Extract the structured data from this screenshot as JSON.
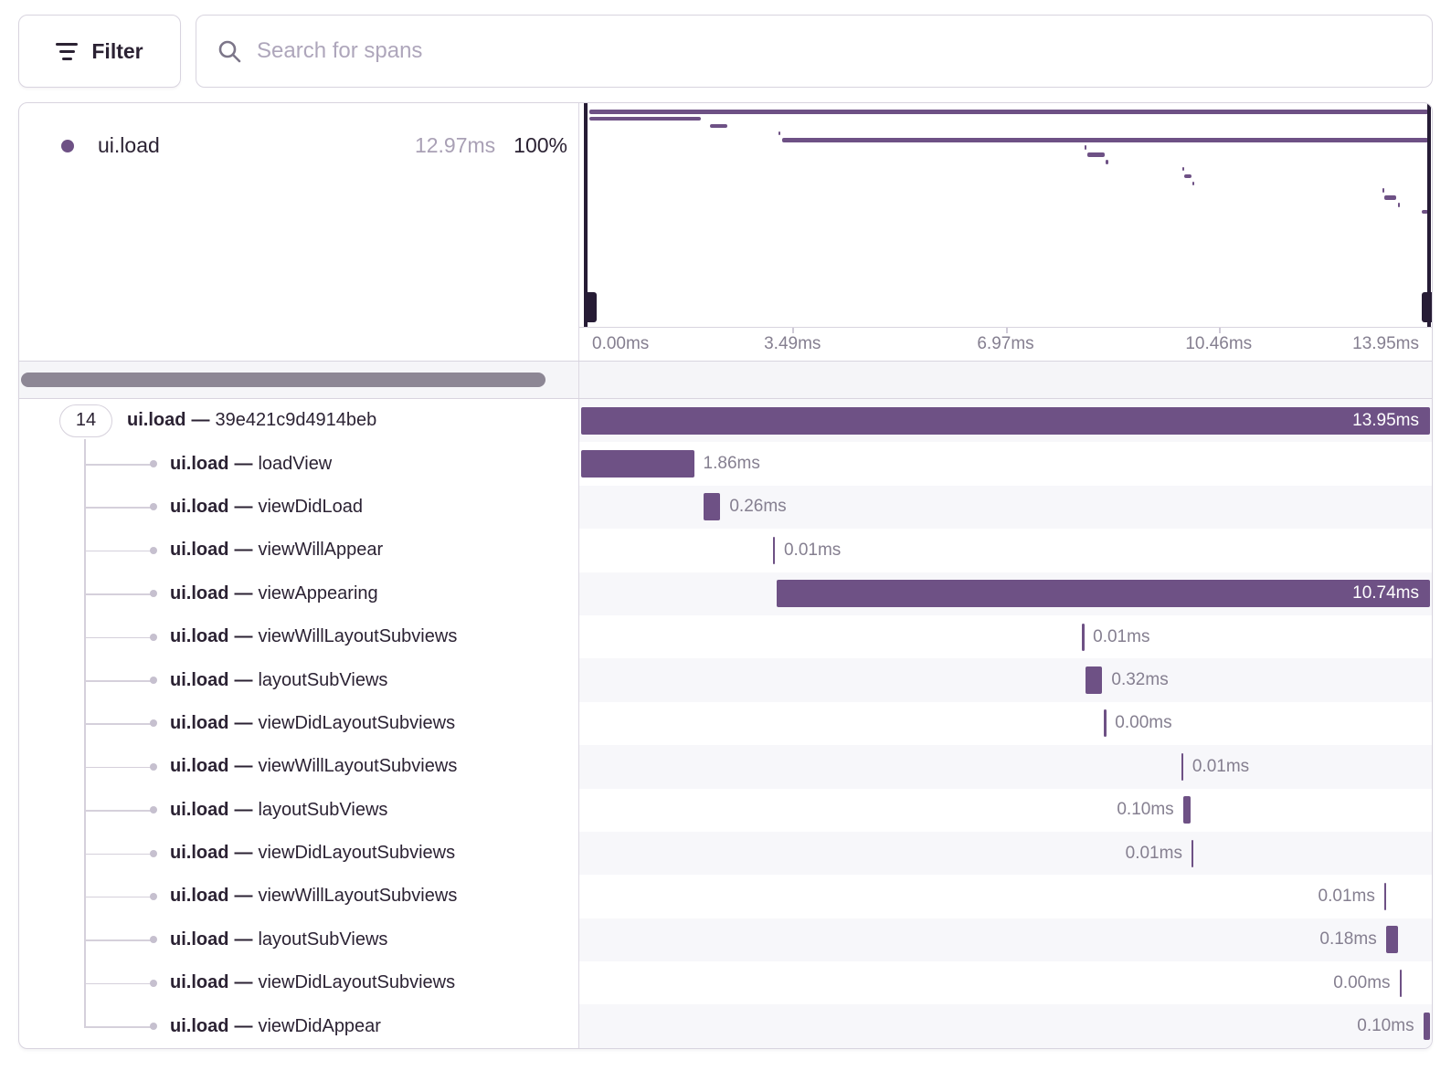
{
  "toolbar": {
    "filter_label": "Filter",
    "search_placeholder": "Search for spans",
    "search_value": ""
  },
  "legend": {
    "op": "ui.load",
    "duration": "12.97ms",
    "percent": "100%"
  },
  "axis": {
    "ticks": [
      "0.00ms",
      "3.49ms",
      "6.97ms",
      "10.46ms",
      "13.95ms"
    ]
  },
  "tree": {
    "root_child_count": "14",
    "separator": "—"
  },
  "spans": [
    {
      "op": "ui.load",
      "description": "39e421c9d4914beb",
      "duration": "13.95ms",
      "left_pct": 0,
      "width_pct": 100,
      "label": "inside",
      "root": true
    },
    {
      "op": "ui.load",
      "description": "loadView",
      "duration": "1.86ms",
      "left_pct": 0,
      "width_pct": 13.3,
      "label": "right"
    },
    {
      "op": "ui.load",
      "description": "viewDidLoad",
      "duration": "0.26ms",
      "left_pct": 14.4,
      "width_pct": 2.0,
      "label": "right"
    },
    {
      "op": "ui.load",
      "description": "viewWillAppear",
      "duration": "0.01ms",
      "left_pct": 22.6,
      "width_pct": 0.22,
      "label": "right"
    },
    {
      "op": "ui.load",
      "description": "viewAppearing",
      "duration": "10.74ms",
      "left_pct": 23.0,
      "width_pct": 77.0,
      "label": "inside"
    },
    {
      "op": "ui.load",
      "description": "viewWillLayoutSubviews",
      "duration": "0.01ms",
      "left_pct": 59.0,
      "width_pct": 0.22,
      "label": "right"
    },
    {
      "op": "ui.load",
      "description": "layoutSubViews",
      "duration": "0.32ms",
      "left_pct": 59.4,
      "width_pct": 2.0,
      "label": "right"
    },
    {
      "op": "ui.load",
      "description": "viewDidLayoutSubviews",
      "duration": "0.00ms",
      "left_pct": 61.6,
      "width_pct": 0.22,
      "label": "right"
    },
    {
      "op": "ui.load",
      "description": "viewWillLayoutSubviews",
      "duration": "0.01ms",
      "left_pct": 70.7,
      "width_pct": 0.22,
      "label": "right"
    },
    {
      "op": "ui.load",
      "description": "layoutSubViews",
      "duration": "0.10ms",
      "left_pct": 70.9,
      "width_pct": 0.9,
      "label": "left"
    },
    {
      "op": "ui.load",
      "description": "viewDidLayoutSubviews",
      "duration": "0.01ms",
      "left_pct": 71.9,
      "width_pct": 0.22,
      "label": "left"
    },
    {
      "op": "ui.load",
      "description": "viewWillLayoutSubviews",
      "duration": "0.01ms",
      "left_pct": 94.6,
      "width_pct": 0.22,
      "label": "left"
    },
    {
      "op": "ui.load",
      "description": "layoutSubViews",
      "duration": "0.18ms",
      "left_pct": 94.8,
      "width_pct": 1.4,
      "label": "left"
    },
    {
      "op": "ui.load",
      "description": "viewDidLayoutSubviews",
      "duration": "0.00ms",
      "left_pct": 96.4,
      "width_pct": 0.22,
      "label": "left"
    },
    {
      "op": "ui.load",
      "description": "viewDidAppear",
      "duration": "0.10ms",
      "left_pct": 99.2,
      "width_pct": 0.8,
      "label": "left"
    }
  ],
  "colors": {
    "span_purple": "#6e5185",
    "handle_dark": "#261c35",
    "text_dark": "#2b2233",
    "text_gray": "#857f90",
    "text_light": "#a9a0b5",
    "stripe": "#f7f7fa"
  }
}
